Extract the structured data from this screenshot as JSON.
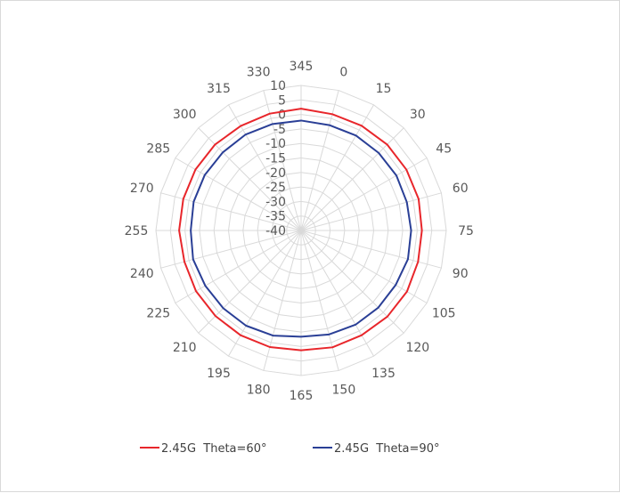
{
  "chart_data": {
    "type": "radar",
    "title": "",
    "categories": [
      "345",
      "330",
      "315",
      "300",
      "285",
      "270",
      "255",
      "240",
      "225",
      "210",
      "195",
      "180",
      "165",
      "150",
      "135",
      "120",
      "105",
      "90",
      "75",
      "60",
      "45",
      "30",
      "15",
      "0"
    ],
    "radial_axis": {
      "min": -40,
      "max": 10,
      "step": 5,
      "tick_labels": [
        "-40",
        "-35",
        "-30",
        "-25",
        "-20",
        "-15",
        "-10",
        "-5",
        "0",
        "5",
        "10"
      ]
    },
    "grid": true,
    "legend_position": "bottom",
    "series": [
      {
        "name": "2.45G  Theta=60°",
        "color": "#e8262b",
        "values": [
          2,
          1.7,
          1.6,
          1.9,
          2,
          2,
          2,
          1.6,
          1.8,
          1.7,
          1.7,
          1.6,
          1.3,
          1.7,
          1.7,
          2,
          2.1,
          1.7,
          1.6,
          1.9,
          1.9,
          1.9,
          1.7,
          1.5
        ]
      },
      {
        "name": "2.45G  Theta=90°",
        "color": "#2a3f96",
        "values": [
          -2.1,
          -2,
          -1.8,
          -1.9,
          -1.7,
          -1.7,
          -2,
          -1.5,
          -1.9,
          -2.1,
          -2.1,
          -2.5,
          -3.4,
          -2.9,
          -2.5,
          -2.4,
          -2.4,
          -1.9,
          -2.1,
          -2.3,
          -2.1,
          -2.2,
          -2.2,
          -2.4
        ]
      }
    ]
  }
}
